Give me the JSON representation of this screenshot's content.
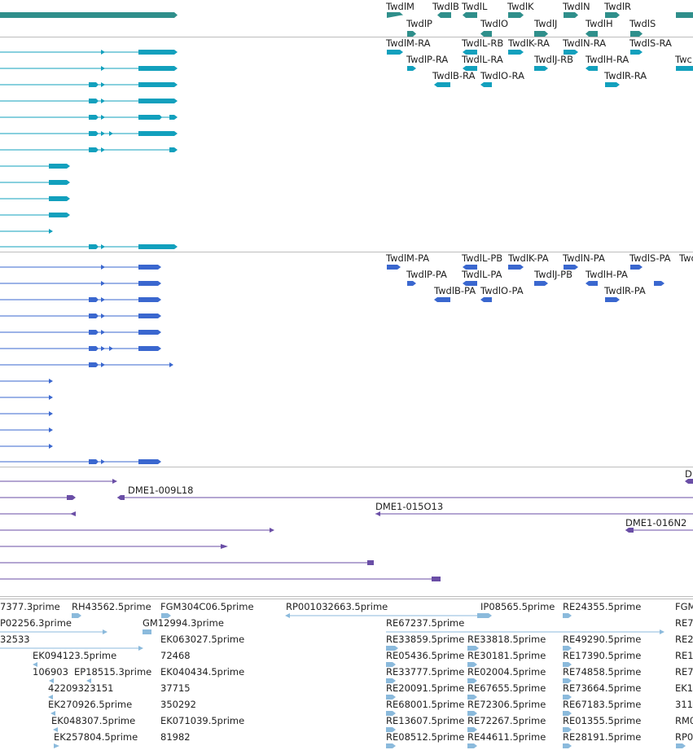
{
  "colors": {
    "gene": "#2f8f8b",
    "transcript_ra": "#12a0bd",
    "protein_pa": "#3a67cf",
    "bac": "#6a4ea6",
    "est": "#8bbadc",
    "separator": "#bdbdbd"
  },
  "tracks": [
    {
      "id": "gene-track",
      "color_key": "gene",
      "labels": [
        "TwdlM",
        "TwdlB",
        "TwdlL",
        "TwdlK",
        "TwdlN",
        "TwdlR",
        "TwdlP",
        "TwdlO",
        "TwdlJ",
        "TwdlH",
        "TwdlS"
      ]
    },
    {
      "id": "transcript-track",
      "color_key": "transcript_ra",
      "labels": [
        "TwdlM-RA",
        "TwdlL-RB",
        "TwdlK-RA",
        "TwdlN-RA",
        "TwdlS-RA",
        "TwdlP-RA",
        "TwdlL-RA",
        "TwdlJ-RB",
        "TwdlH-RA",
        "TwdlB-RA",
        "TwdlO-RA",
        "TwdlR-RA"
      ]
    },
    {
      "id": "protein-track",
      "color_key": "protein_pa",
      "labels": [
        "TwdlM-PA",
        "TwdlL-PB",
        "TwdlK-PA",
        "TwdlN-PA",
        "TwdlS-PA",
        "TwdlP-PA",
        "TwdlL-PA",
        "TwdlJ-PB",
        "TwdlH-PA",
        "TwdlB-PA",
        "TwdlO-PA",
        "TwdlR-PA"
      ]
    },
    {
      "id": "bac-track",
      "color_key": "bac",
      "labels": [
        "D",
        "DME1-009L18",
        "DME1-015O13",
        "DME1-016N2"
      ]
    },
    {
      "id": "est-track",
      "color_key": "est",
      "labels": [
        "7377.3prime",
        "RH43562.5prime",
        "FGM304C06.5prime",
        "RP001032663.5prime",
        "IP08565.5prime",
        "RE24355.5prime",
        "FGM",
        "P02256.3prime",
        "GM12994.3prime",
        "RE67237.5prime",
        "RE7",
        "32533",
        "EK063027.5prime",
        "RE33859.5prime",
        "RE33818.5prime",
        "RE49290.5prime",
        "RE2",
        "EK094123.5prime",
        "72468",
        "RE05436.5prime",
        "RE30181.5prime",
        "RE17390.5prime",
        "RE1",
        "106903",
        "EP18515.3prime",
        "EK040434.5prime",
        "RE33777.5prime",
        "RE02004.5prime",
        "RE74858.5prime",
        "RE7",
        "42209323151",
        "37715",
        "RE20091.5prime",
        "RE67655.5prime",
        "RE73664.5prime",
        "EK1",
        "EK270926.5prime",
        "350292",
        "RE68001.5prime",
        "RE72306.5prime",
        "RE67183.5prime",
        "311",
        "EK048307.5prime",
        "EK071039.5prime",
        "RE13607.5prime",
        "RE72267.5prime",
        "RE01355.5prime",
        "RM0",
        "EK257804.5prime",
        "81982",
        "RE08512.5prime",
        "RE44611.5prime",
        "RE28191.5prime",
        "RP0"
      ]
    }
  ]
}
